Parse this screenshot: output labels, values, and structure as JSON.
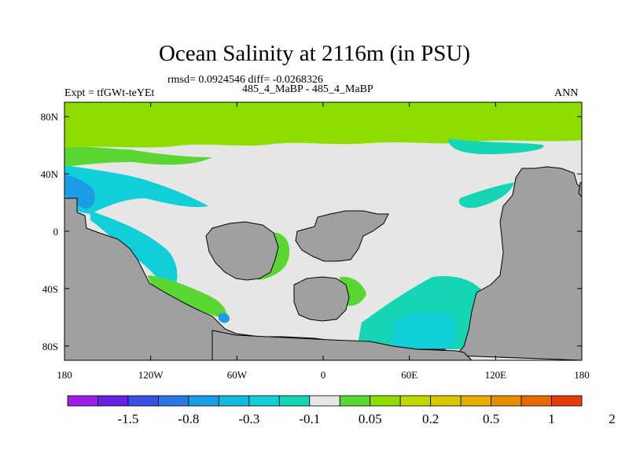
{
  "title": "Ocean Salinity at 2116m (in PSU)",
  "stats_line": "rmsd= 0.0924546 diff= -0.0268326",
  "left_label": "Expt = tfGWt-teYEt",
  "center_label": "485_4_MaBP - 485_4_MaBP",
  "right_label": "ANN",
  "chart_data": {
    "type": "heatmap",
    "title": "Ocean Salinity at 2116m (in PSU)",
    "x_ticks": [
      "180",
      "120W",
      "60W",
      "0",
      "60E",
      "120E",
      "180"
    ],
    "y_ticks": [
      "80N",
      "40N",
      "0",
      "40S",
      "80S"
    ],
    "xlim": [
      -180,
      180
    ],
    "ylim": [
      -90,
      90
    ],
    "colorbar": {
      "labels": [
        "-1.5",
        "-0.8",
        "-0.3",
        "-0.1",
        "0.05",
        "0.2",
        "0.5",
        "1",
        "2"
      ],
      "colors": [
        "#9b1fe6",
        "#6a20e0",
        "#3a4fe4",
        "#2a78e4",
        "#1a9de4",
        "#14b9e0",
        "#10cfd8",
        "#14d6b4",
        "#e6e6e6",
        "#5ad632",
        "#8edc00",
        "#bed800",
        "#d8c800",
        "#e6ae00",
        "#e68c00",
        "#e66a00",
        "#e43c0c"
      ]
    },
    "colors": {
      "land": "#a0a0a0",
      "neutral": "#e6e6e6",
      "green_light": "#8edc00",
      "green": "#5ad632",
      "teal": "#14d6b4",
      "cyan": "#10cfd8",
      "blue": "#1a9de4"
    }
  }
}
